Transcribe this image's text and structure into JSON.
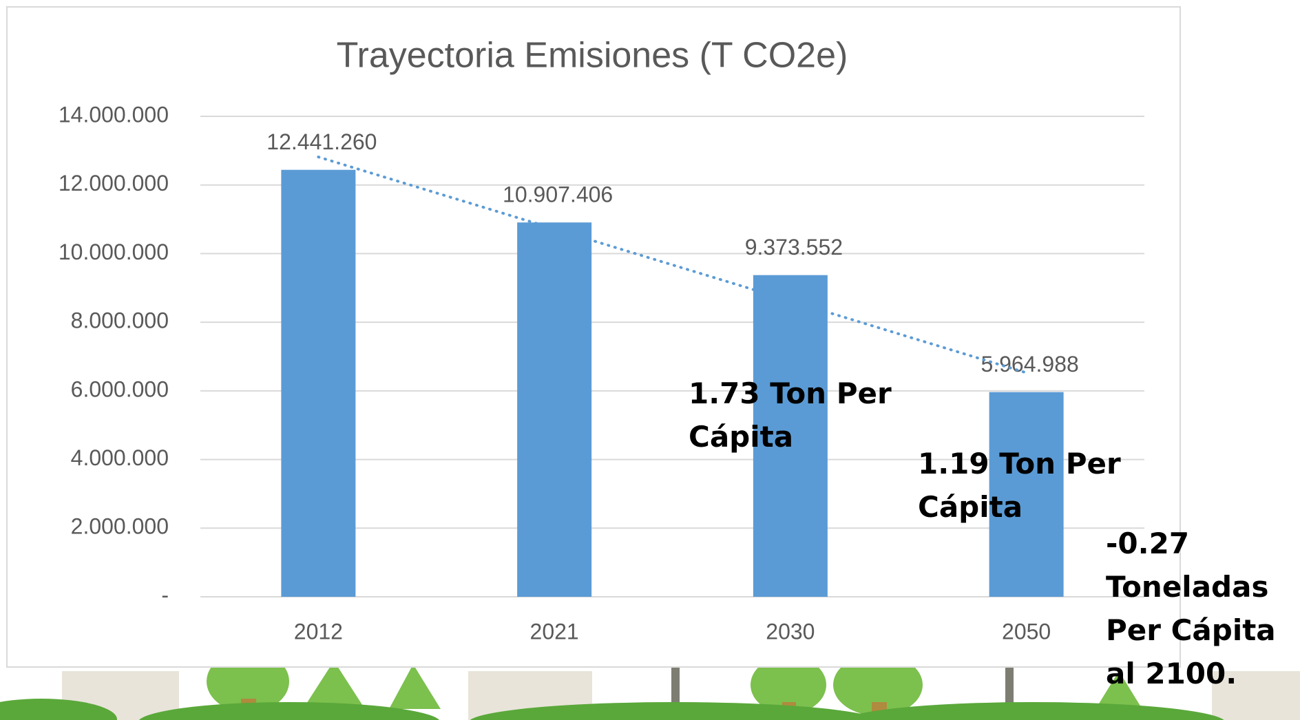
{
  "chart_data": {
    "type": "bar",
    "title": "Trayectoria Emisiones (T CO2e)",
    "categories": [
      "2012",
      "2021",
      "2030",
      "2050"
    ],
    "values": [
      12441260,
      10907406,
      9373552,
      5964988
    ],
    "value_labels": [
      "12.441.260",
      "10.907.406",
      "9.373.552",
      "5.964.988"
    ],
    "color": "#5b9bd5",
    "ylim": [
      0,
      14000000
    ],
    "yticks": [
      {
        "value": 0,
        "label": "-"
      },
      {
        "value": 2000000,
        "label": "2.000.000"
      },
      {
        "value": 4000000,
        "label": "4.000.000"
      },
      {
        "value": 6000000,
        "label": "6.000.000"
      },
      {
        "value": 8000000,
        "label": "8.000.000"
      },
      {
        "value": 10000000,
        "label": "10.000.000"
      },
      {
        "value": 12000000,
        "label": "12.000.000"
      },
      {
        "value": 14000000,
        "label": "14.000.000"
      }
    ],
    "grid": true,
    "trendline": "linear",
    "annotations": [
      "1.73 Ton Per Cápita",
      "1.19 Ton Per Cápita",
      "-0.27 Toneladas Per Cápita al 2100."
    ]
  }
}
